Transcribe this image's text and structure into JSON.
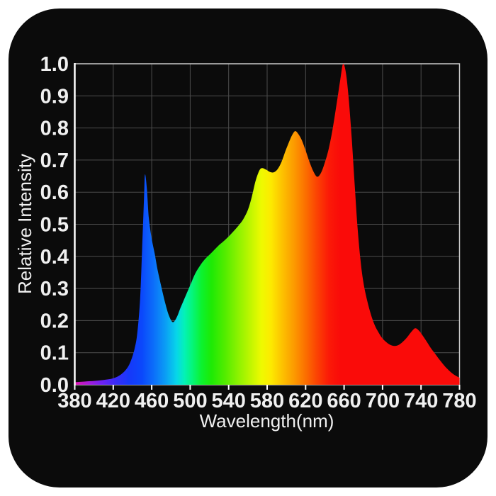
{
  "colors": {
    "page_background": "#ffffff",
    "card_background": "#0b0b0b",
    "plot_background": "#0b0b0b",
    "grid": "#4d4d4d",
    "plot_border": "#c9c9c9",
    "y_axis_line": "#ffffff",
    "tick_mark": "#ffffff",
    "text": "#f0f0f0"
  },
  "chart_data": {
    "type": "area",
    "title": "",
    "xlabel": "Wavelength(nm)",
    "ylabel": "Relative Intensity",
    "xlim": [
      380,
      780
    ],
    "ylim": [
      0,
      1
    ],
    "x_ticks": [
      380,
      420,
      460,
      500,
      540,
      580,
      620,
      660,
      700,
      740,
      780
    ],
    "x_tick_labels": [
      "380",
      "420",
      "460",
      "500",
      "540",
      "580",
      "620",
      "660",
      "700",
      "740",
      "780"
    ],
    "y_ticks": [
      0,
      0.1,
      0.2,
      0.3,
      0.4,
      0.5,
      0.6,
      0.7,
      0.8,
      0.9,
      1.0
    ],
    "y_tick_labels": [
      "0.0",
      "0.1",
      "0.2",
      "0.3",
      "0.4",
      "0.5",
      "0.6",
      "0.7",
      "0.8",
      "0.9",
      "1.0"
    ],
    "grid": true,
    "legend": false,
    "points": [
      [
        380,
        0.008
      ],
      [
        390,
        0.01
      ],
      [
        400,
        0.012
      ],
      [
        410,
        0.015
      ],
      [
        420,
        0.02
      ],
      [
        428,
        0.032
      ],
      [
        434,
        0.05
      ],
      [
        438,
        0.072
      ],
      [
        442,
        0.11
      ],
      [
        445,
        0.16
      ],
      [
        448,
        0.27
      ],
      [
        450,
        0.42
      ],
      [
        452,
        0.58
      ],
      [
        453,
        0.655
      ],
      [
        455,
        0.61
      ],
      [
        457,
        0.52
      ],
      [
        460,
        0.455
      ],
      [
        463,
        0.41
      ],
      [
        466,
        0.36
      ],
      [
        470,
        0.305
      ],
      [
        474,
        0.255
      ],
      [
        478,
        0.215
      ],
      [
        482,
        0.195
      ],
      [
        486,
        0.21
      ],
      [
        490,
        0.24
      ],
      [
        495,
        0.275
      ],
      [
        500,
        0.31
      ],
      [
        505,
        0.345
      ],
      [
        510,
        0.37
      ],
      [
        515,
        0.39
      ],
      [
        520,
        0.405
      ],
      [
        525,
        0.42
      ],
      [
        530,
        0.435
      ],
      [
        535,
        0.448
      ],
      [
        540,
        0.462
      ],
      [
        545,
        0.478
      ],
      [
        550,
        0.495
      ],
      [
        555,
        0.515
      ],
      [
        560,
        0.545
      ],
      [
        564,
        0.585
      ],
      [
        568,
        0.635
      ],
      [
        572,
        0.668
      ],
      [
        575,
        0.675
      ],
      [
        579,
        0.67
      ],
      [
        583,
        0.663
      ],
      [
        587,
        0.662
      ],
      [
        591,
        0.672
      ],
      [
        595,
        0.695
      ],
      [
        599,
        0.728
      ],
      [
        603,
        0.758
      ],
      [
        606,
        0.778
      ],
      [
        609,
        0.79
      ],
      [
        612,
        0.783
      ],
      [
        616,
        0.762
      ],
      [
        620,
        0.73
      ],
      [
        624,
        0.695
      ],
      [
        628,
        0.665
      ],
      [
        632,
        0.648
      ],
      [
        636,
        0.66
      ],
      [
        640,
        0.692
      ],
      [
        644,
        0.735
      ],
      [
        648,
        0.795
      ],
      [
        652,
        0.87
      ],
      [
        656,
        0.95
      ],
      [
        659,
        1.0
      ],
      [
        662,
        0.97
      ],
      [
        665,
        0.885
      ],
      [
        668,
        0.765
      ],
      [
        671,
        0.625
      ],
      [
        674,
        0.49
      ],
      [
        677,
        0.39
      ],
      [
        680,
        0.32
      ],
      [
        684,
        0.262
      ],
      [
        688,
        0.218
      ],
      [
        692,
        0.185
      ],
      [
        696,
        0.162
      ],
      [
        700,
        0.144
      ],
      [
        705,
        0.13
      ],
      [
        710,
        0.122
      ],
      [
        715,
        0.122
      ],
      [
        720,
        0.131
      ],
      [
        725,
        0.146
      ],
      [
        730,
        0.165
      ],
      [
        734,
        0.176
      ],
      [
        738,
        0.168
      ],
      [
        742,
        0.152
      ],
      [
        746,
        0.134
      ],
      [
        750,
        0.115
      ],
      [
        755,
        0.095
      ],
      [
        760,
        0.075
      ],
      [
        765,
        0.057
      ],
      [
        770,
        0.042
      ],
      [
        775,
        0.03
      ],
      [
        780,
        0.022
      ]
    ],
    "spectrum_gradient_stops": [
      {
        "nm": 380,
        "color": "#e114ae"
      },
      {
        "nm": 394,
        "color": "#a81bd8"
      },
      {
        "nm": 408,
        "color": "#6e21f3"
      },
      {
        "nm": 422,
        "color": "#3c2bf8"
      },
      {
        "nm": 436,
        "color": "#1738fa"
      },
      {
        "nm": 450,
        "color": "#0b48fb"
      },
      {
        "nm": 462,
        "color": "#0c6efa"
      },
      {
        "nm": 474,
        "color": "#0b9cf5"
      },
      {
        "nm": 486,
        "color": "#07d6e9"
      },
      {
        "nm": 494,
        "color": "#04f2b6"
      },
      {
        "nm": 502,
        "color": "#05f57c"
      },
      {
        "nm": 512,
        "color": "#0cf22e"
      },
      {
        "nm": 522,
        "color": "#1dea05"
      },
      {
        "nm": 536,
        "color": "#52ec00"
      },
      {
        "nm": 550,
        "color": "#8df200"
      },
      {
        "nm": 562,
        "color": "#bdf600"
      },
      {
        "nm": 574,
        "color": "#eefa00"
      },
      {
        "nm": 584,
        "color": "#fdea00"
      },
      {
        "nm": 596,
        "color": "#fdc100"
      },
      {
        "nm": 608,
        "color": "#fc9a00"
      },
      {
        "nm": 620,
        "color": "#fb6f00"
      },
      {
        "nm": 632,
        "color": "#fb4203"
      },
      {
        "nm": 644,
        "color": "#fb1a07"
      },
      {
        "nm": 656,
        "color": "#fa0b09"
      },
      {
        "nm": 780,
        "color": "#fa0b09"
      }
    ]
  }
}
